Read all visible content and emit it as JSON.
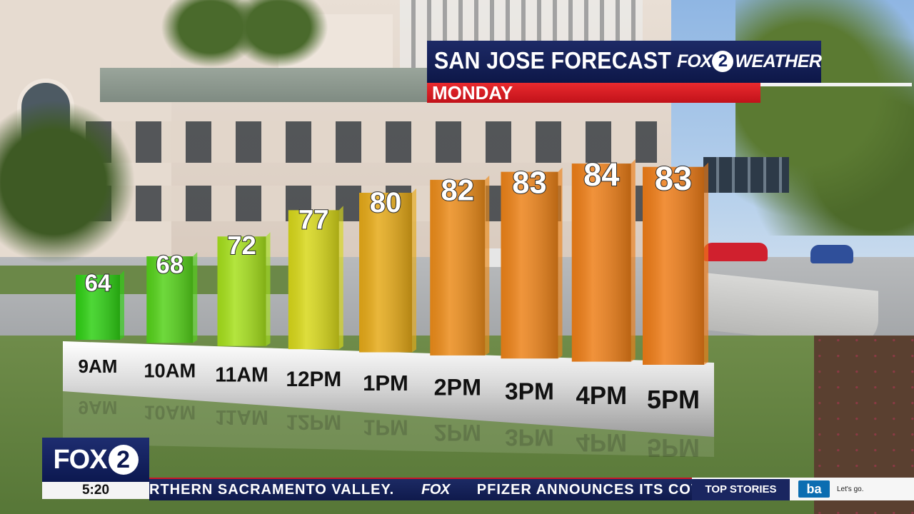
{
  "header": {
    "title": "SAN JOSE FORECAST",
    "day": "MONDAY",
    "brand_fox": "FOX",
    "brand_number": "2",
    "brand_weather": "WEATHER"
  },
  "chart_data": {
    "type": "bar",
    "title": "",
    "xlabel": "",
    "ylabel": "",
    "categories": [
      "9AM",
      "10AM",
      "11AM",
      "12PM",
      "1PM",
      "2PM",
      "3PM",
      "4PM",
      "5PM"
    ],
    "values": [
      64,
      68,
      72,
      77,
      80,
      82,
      83,
      84,
      83
    ],
    "ylim": [
      50,
      90
    ],
    "grid": false,
    "bar_colors": [
      "#2fd014",
      "#55d21a",
      "#a6e01c",
      "#d8d81a",
      "#e6aa18",
      "#ec8c1a",
      "#ed8319",
      "#ee7f18",
      "#ef7d18"
    ]
  },
  "station": {
    "logo_fox": "FOX",
    "logo_number": "2",
    "time": "5:20"
  },
  "ticker": {
    "text_left": "RTHERN SACRAMENTO VALLEY.",
    "separator": "FOX",
    "text_right": "PFIZER ANNOUNCES ITS COV",
    "section": "TOP STORIES"
  },
  "sponsor": {
    "logo": "ba",
    "tagline": "Let's go."
  },
  "colors": {
    "header_blue": "#0d1748",
    "header_red": "#d81b22"
  }
}
